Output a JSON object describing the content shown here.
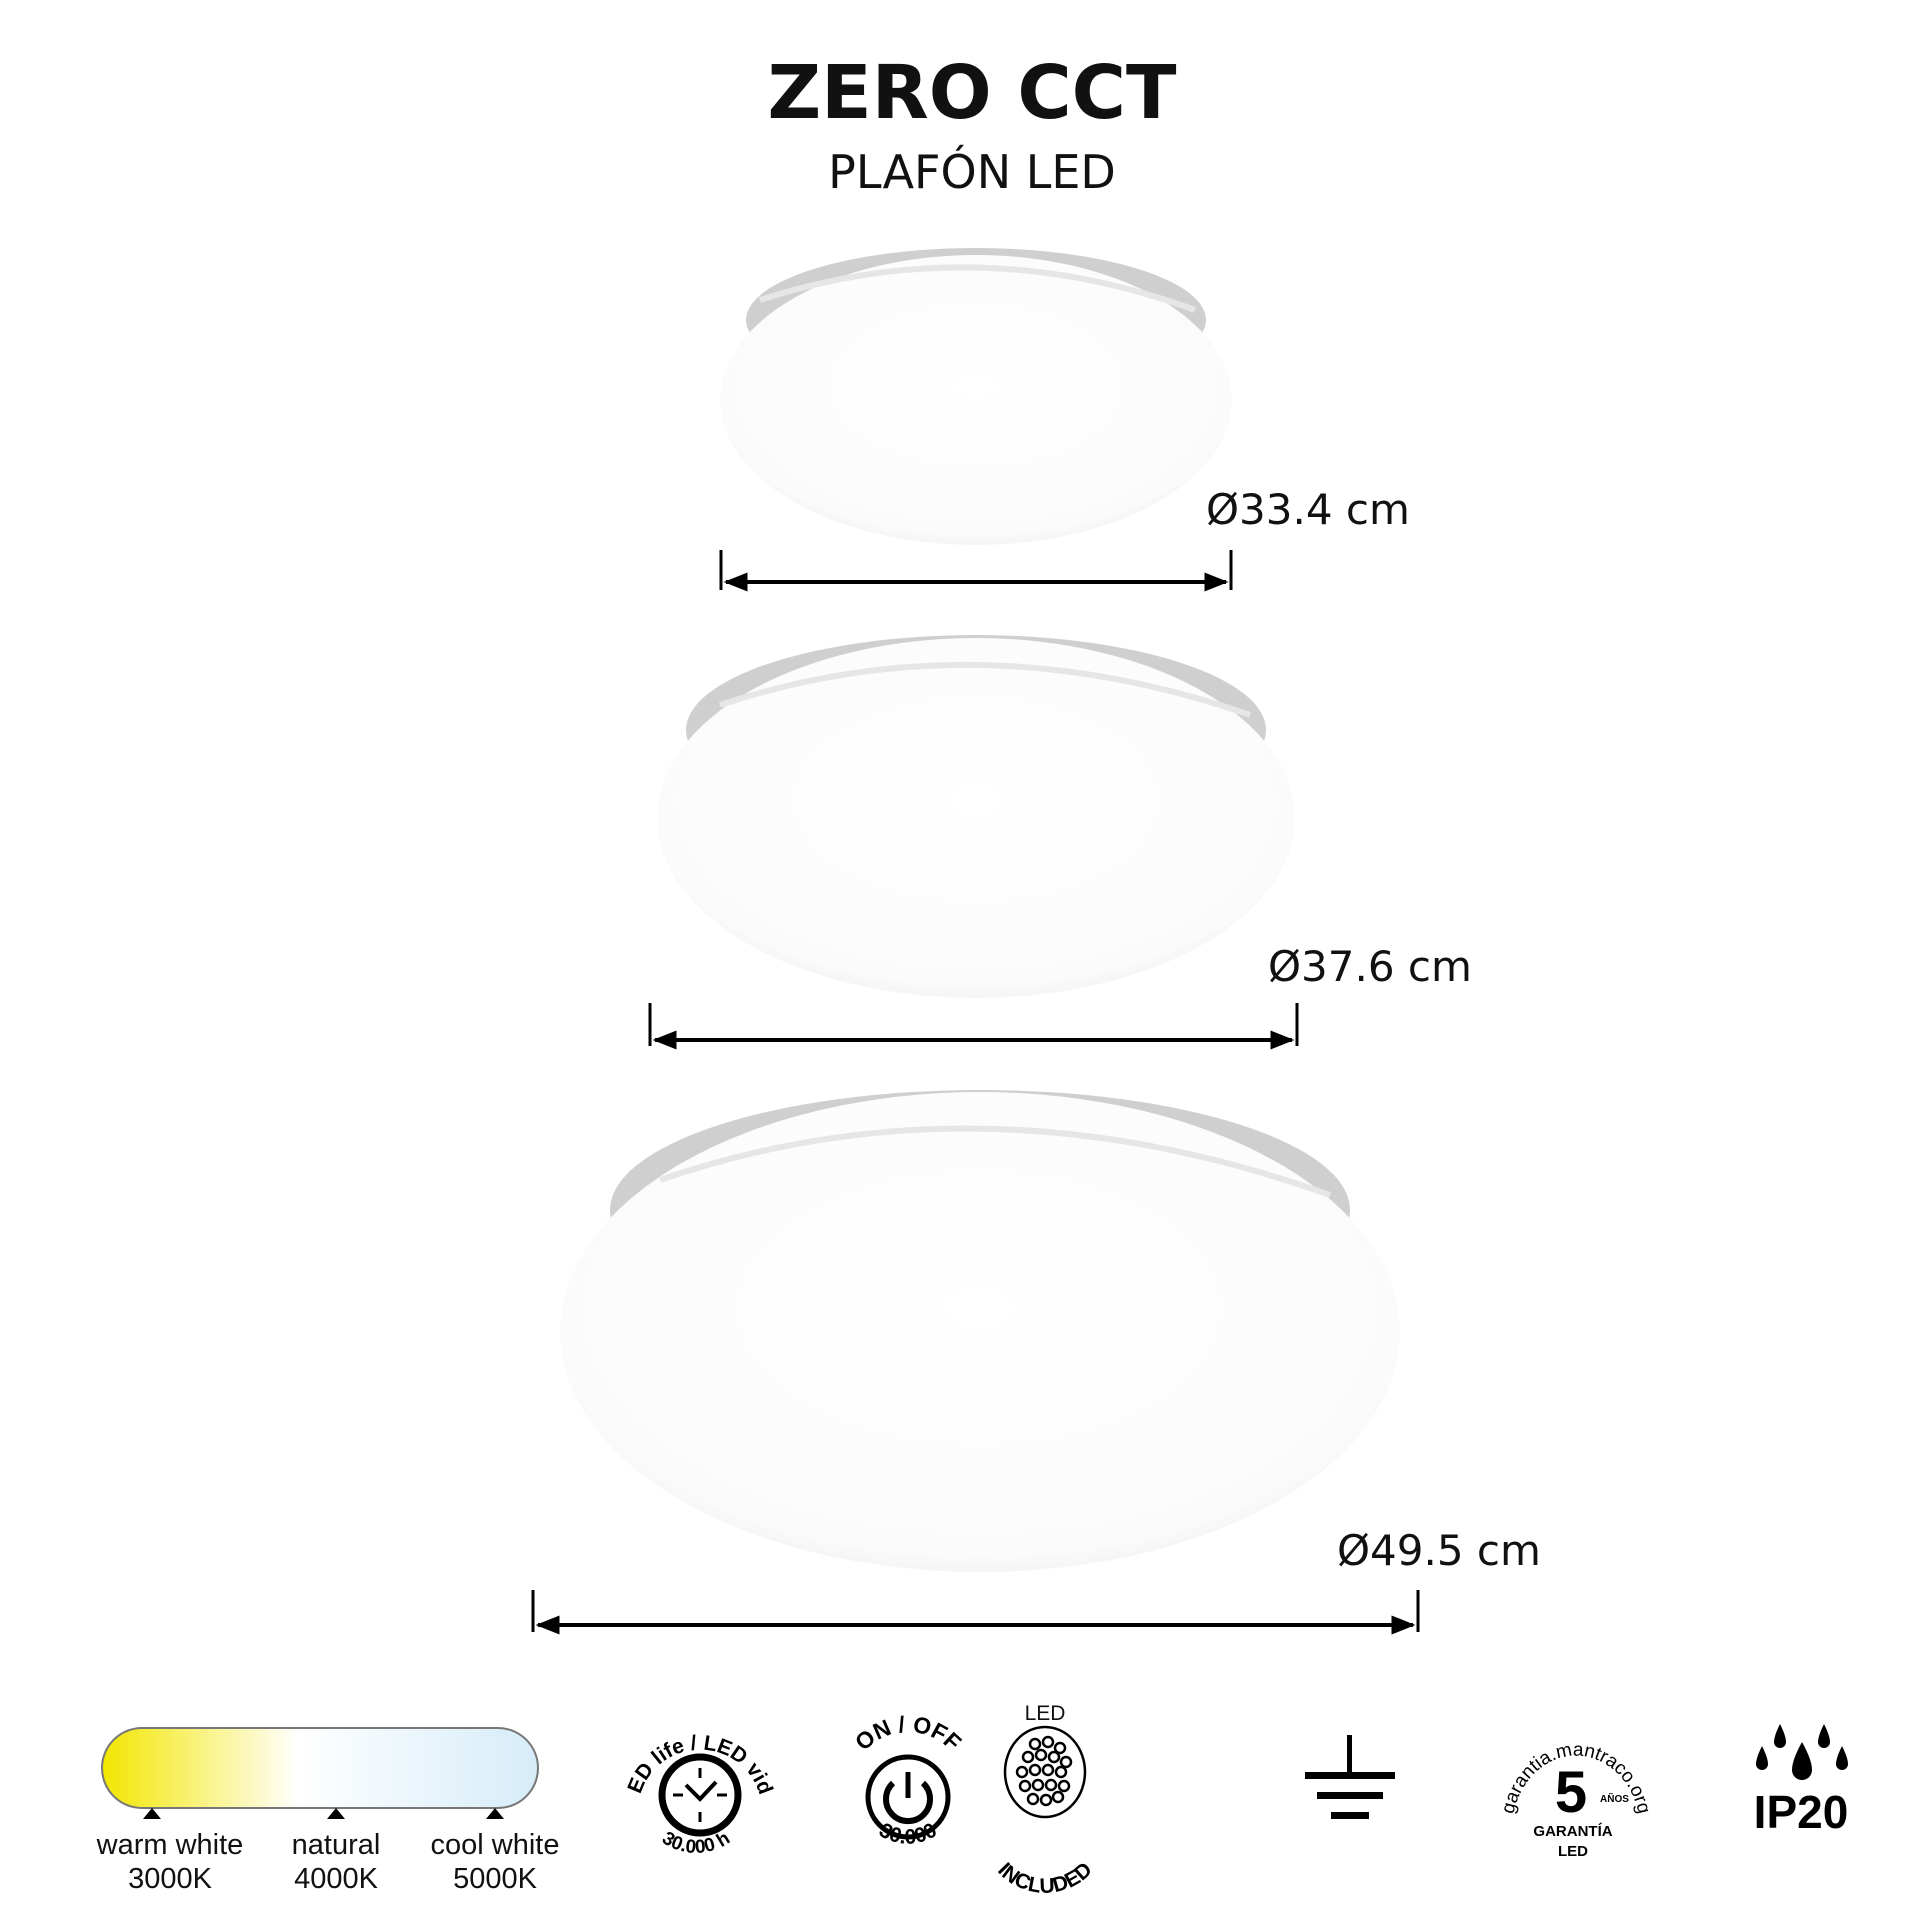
{
  "header": {
    "title": "ZERO CCT",
    "subtitle": "PLAFÓN LED"
  },
  "products": [
    {
      "diameter_label": "Ø33.4 cm"
    },
    {
      "diameter_label": "Ø37.6 cm"
    },
    {
      "diameter_label": "Ø49.5 cm"
    }
  ],
  "color_temperature": {
    "gradient_colors": [
      "#f2e600",
      "#ffffff",
      "#d6ecf8"
    ],
    "stops": [
      {
        "name": "warm white",
        "value": "3000K"
      },
      {
        "name": "natural",
        "value": "4000K"
      },
      {
        "name": "cool white",
        "value": "5000K"
      }
    ]
  },
  "icons": {
    "led_life": {
      "icon": "clock-icon",
      "top_text": "LED life / LED vida",
      "bottom_text": "30.000 h"
    },
    "on_off": {
      "icon": "power-icon",
      "top_text": "ON / OFF",
      "bottom_text": "30.000"
    },
    "led_included": {
      "icon": "led-cluster-icon",
      "top_text": "LED",
      "bottom_text": "INCLUDED"
    },
    "ground": {
      "icon": "ground-icon"
    },
    "warranty": {
      "arc_text": "garantia.mantraco.org",
      "number": "5",
      "unit": "AÑOS",
      "line1": "GARANTÍA",
      "line2": "LED"
    },
    "ip": {
      "icon": "water-drops-icon",
      "label": "IP20"
    }
  }
}
